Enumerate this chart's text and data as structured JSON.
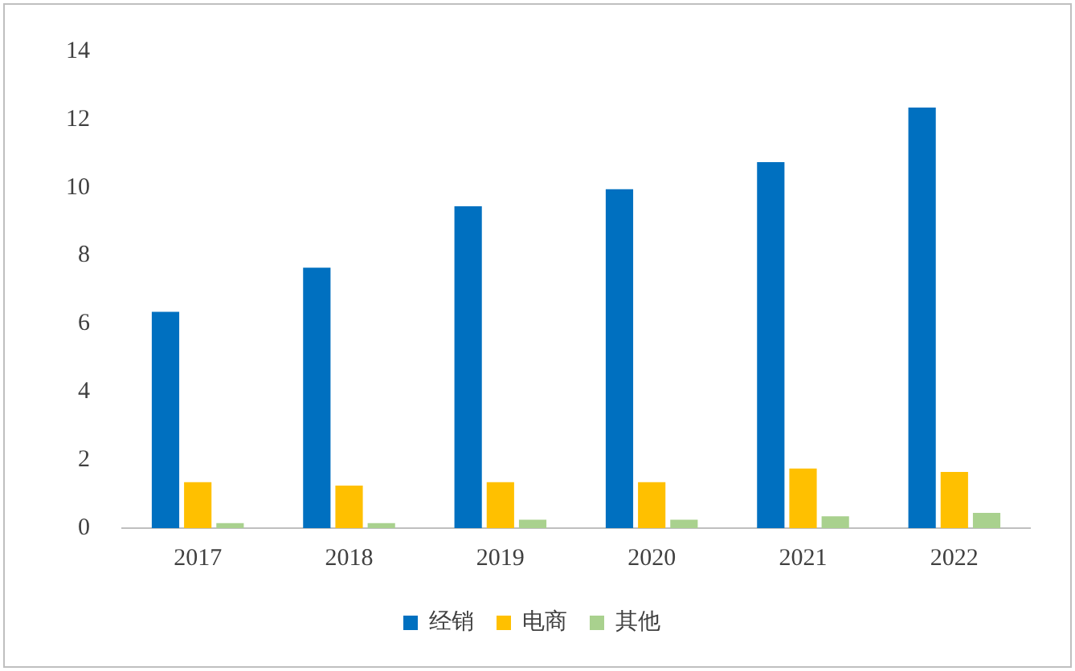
{
  "chart_data": {
    "type": "bar",
    "categories": [
      "2017",
      "2018",
      "2019",
      "2020",
      "2021",
      "2022"
    ],
    "series": [
      {
        "name": "经销",
        "color": "#0070c0",
        "values": [
          6.35,
          7.65,
          9.45,
          9.95,
          10.75,
          12.35
        ]
      },
      {
        "name": "电商",
        "color": "#ffc000",
        "values": [
          1.35,
          1.25,
          1.35,
          1.35,
          1.75,
          1.65
        ]
      },
      {
        "name": "其他",
        "color": "#a9d18e",
        "values": [
          0.15,
          0.15,
          0.25,
          0.25,
          0.35,
          0.45
        ]
      }
    ],
    "ylim": [
      0,
      14
    ],
    "yticks": [
      0,
      2,
      4,
      6,
      8,
      10,
      12,
      14
    ],
    "grid": false,
    "legend": "bottom"
  }
}
